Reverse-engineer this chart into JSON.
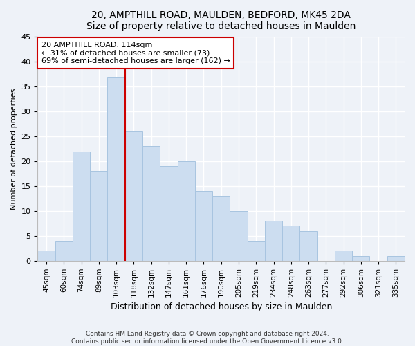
{
  "title": "20, AMPTHILL ROAD, MAULDEN, BEDFORD, MK45 2DA",
  "subtitle": "Size of property relative to detached houses in Maulden",
  "xlabel": "Distribution of detached houses by size in Maulden",
  "ylabel": "Number of detached properties",
  "bar_labels": [
    "45sqm",
    "60sqm",
    "74sqm",
    "89sqm",
    "103sqm",
    "118sqm",
    "132sqm",
    "147sqm",
    "161sqm",
    "176sqm",
    "190sqm",
    "205sqm",
    "219sqm",
    "234sqm",
    "248sqm",
    "263sqm",
    "277sqm",
    "292sqm",
    "306sqm",
    "321sqm",
    "335sqm"
  ],
  "bar_values": [
    2,
    4,
    22,
    18,
    37,
    26,
    23,
    19,
    20,
    14,
    13,
    10,
    4,
    8,
    7,
    6,
    0,
    2,
    1,
    0,
    1
  ],
  "bar_color": "#ccddf0",
  "bar_edge_color": "#a8c4e0",
  "marker_color": "#cc0000",
  "ylim": [
    0,
    45
  ],
  "yticks": [
    0,
    5,
    10,
    15,
    20,
    25,
    30,
    35,
    40,
    45
  ],
  "annotation_title": "20 AMPTHILL ROAD: 114sqm",
  "annotation_line1": "← 31% of detached houses are smaller (73)",
  "annotation_line2": "69% of semi-detached houses are larger (162) →",
  "annotation_box_color": "#ffffff",
  "annotation_box_edge": "#cc0000",
  "footer1": "Contains HM Land Registry data © Crown copyright and database right 2024.",
  "footer2": "Contains public sector information licensed under the Open Government Licence v3.0.",
  "bg_color": "#eef2f8",
  "grid_color": "#ffffff"
}
